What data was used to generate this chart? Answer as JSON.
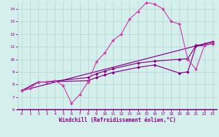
{
  "xlabel": "Windchill (Refroidissement éolien,°C)",
  "bg_color": "#d5f0ec",
  "grid_color": "#b8ddd8",
  "line_color_dark": "#880088",
  "line_color_bright": "#cc44aa",
  "xlim": [
    -0.5,
    23.5
  ],
  "ylim": [
    6,
    14.6
  ],
  "yticks": [
    6,
    7,
    8,
    9,
    10,
    11,
    12,
    13,
    14
  ],
  "xticks": [
    0,
    1,
    2,
    3,
    4,
    5,
    6,
    7,
    8,
    9,
    10,
    11,
    12,
    13,
    14,
    15,
    16,
    17,
    18,
    19,
    20,
    21,
    22,
    23
  ],
  "line1_x": [
    0,
    1,
    2,
    3,
    4,
    5,
    6,
    7,
    8,
    9,
    10,
    11,
    12,
    13,
    14,
    15,
    16,
    17,
    18,
    19,
    20,
    21,
    22,
    23
  ],
  "line1_y": [
    7.5,
    7.7,
    8.2,
    8.2,
    8.3,
    7.9,
    6.5,
    7.2,
    8.2,
    9.8,
    10.5,
    11.5,
    12.0,
    13.2,
    13.8,
    14.5,
    14.4,
    14.0,
    13.0,
    12.8,
    10.0,
    9.2,
    11.1,
    11.3
  ],
  "line2_x": [
    0,
    2,
    3,
    8,
    9,
    10,
    11,
    14,
    16,
    19,
    20,
    21,
    22,
    23
  ],
  "line2_y": [
    7.5,
    8.2,
    8.2,
    8.3,
    8.55,
    8.75,
    8.95,
    9.35,
    9.55,
    8.9,
    9.0,
    11.05,
    11.1,
    11.25
  ],
  "line3_x": [
    0,
    2,
    3,
    8,
    9,
    10,
    11,
    14,
    16,
    19,
    20,
    21,
    22,
    23
  ],
  "line3_y": [
    7.5,
    8.2,
    8.2,
    8.55,
    8.85,
    9.05,
    9.25,
    9.7,
    9.85,
    10.0,
    10.05,
    11.1,
    11.2,
    11.4
  ],
  "line4_x": [
    0,
    23
  ],
  "line4_y": [
    7.5,
    11.4
  ],
  "marker_size": 2.5,
  "line_width": 0.9
}
